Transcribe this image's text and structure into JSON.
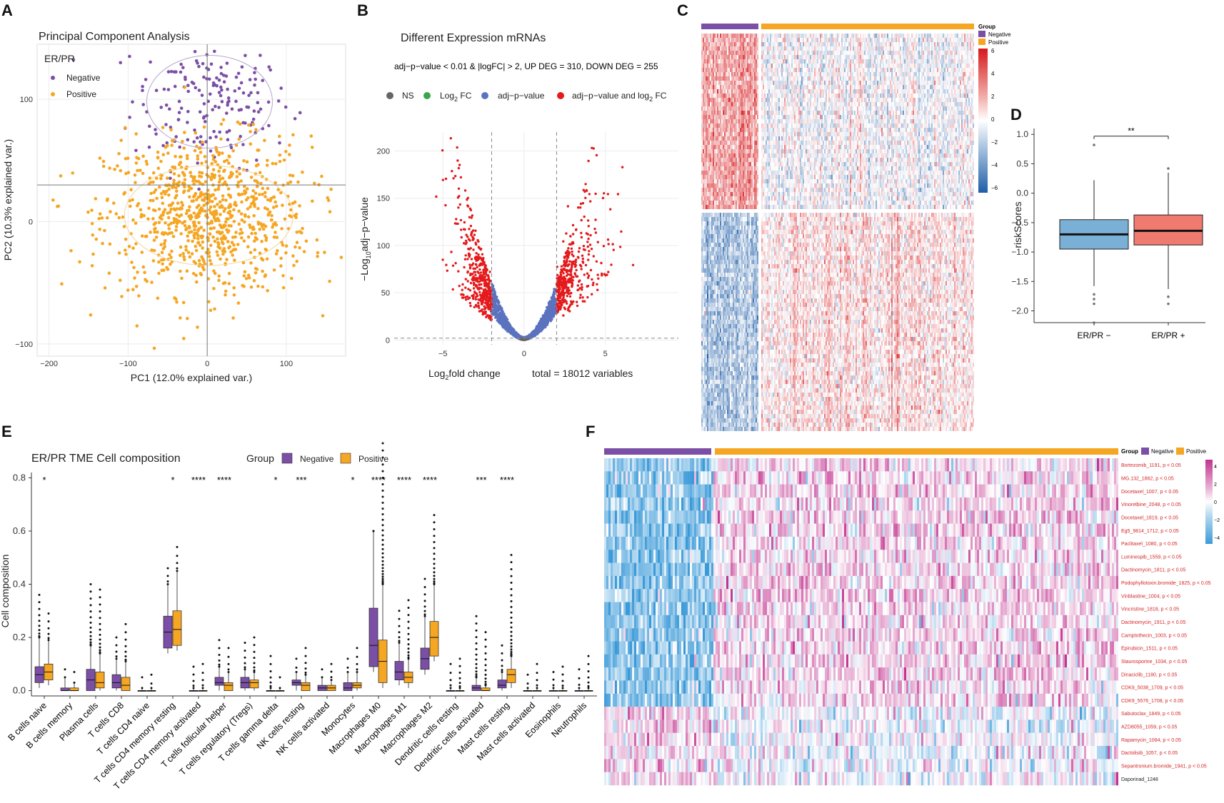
{
  "panels": {
    "A": "A",
    "B": "B",
    "C": "C",
    "D": "D",
    "E": "E",
    "F": "F"
  },
  "colors": {
    "negative": "#7b4fa6",
    "positive": "#f5a623",
    "up": "#e41a1c",
    "sig": "#5b73bf",
    "ns": "#666666",
    "fc": "#3aa64a",
    "boxNeg": "#7bb0d6",
    "boxPos": "#f07a70"
  },
  "chart_data": [
    {
      "panel": "A",
      "type": "scatter",
      "title": "Principal Component Analysis",
      "xlabel": "PC1 (12.0% explained var.)",
      "ylabel": "PC2 (10.3% explained var.)",
      "xlim": [
        -215,
        175
      ],
      "ylim": [
        -110,
        145
      ],
      "xticks": [
        -200,
        -100,
        0,
        100
      ],
      "yticks": [
        -100,
        0,
        100
      ],
      "xtick_labels": [
        "−200",
        "−100",
        "0",
        "100"
      ],
      "ytick_labels": [
        "−100",
        "0",
        "100"
      ],
      "legend_title": "ER/PR",
      "series": [
        {
          "name": "Negative",
          "center": [
            5,
            100
          ],
          "spread": [
            50,
            28
          ],
          "n": 190
        },
        {
          "name": "Positive",
          "center": [
            0,
            5
          ],
          "spread": [
            65,
            32
          ],
          "n": 900
        }
      ]
    },
    {
      "panel": "B",
      "type": "scatter",
      "title": "Different Expression mRNAs",
      "subtitle": "adj−p−value < 0.01 & |logFC| > 2, UP DEG = 310, DOWN DEG = 255",
      "xlabel": "fold change",
      "xlabel_prefix": "Log",
      "xlabel_sub": "2",
      "ylabel": "adj−p−value",
      "ylabel_prefix": "−Log",
      "ylabel_sub": "10",
      "caption": "total = 18012 variables",
      "legend": [
        "NS",
        "Log",
        "2",
        " FC",
        "adj−p−value",
        "adj−p−value and log",
        "2",
        " FC"
      ],
      "xlim": [
        -8,
        9.5
      ],
      "ylim": [
        -5,
        220
      ],
      "xticks": [
        -5,
        0,
        5
      ],
      "xtick_labels": [
        "−5",
        "0",
        "5"
      ],
      "yticks": [
        0,
        50,
        100,
        150,
        200
      ],
      "ytick_labels": [
        "0",
        "50",
        "100",
        "150",
        "200"
      ],
      "fc_cutoff": 2,
      "p_cutoff": 2
    },
    {
      "panel": "C",
      "type": "heatmap",
      "legend_title": "Group",
      "legend_items": [
        "Negative",
        "Positive"
      ],
      "scale_ticks": [
        "6",
        "4",
        "2",
        "0",
        "−2",
        "−4",
        "−6"
      ]
    },
    {
      "panel": "D",
      "type": "box",
      "ylabel": "riskScores",
      "categories": [
        "ER/PR −",
        "ER/PR +"
      ],
      "yticks": [
        1.0,
        0.5,
        0.0,
        -0.5,
        -1.0,
        -1.5,
        -2.0
      ],
      "ytick_labels": [
        "1.0",
        "0.5",
        "0.0",
        "−0.5",
        "−1.0",
        "−1.5",
        "−2.0"
      ],
      "ylim": [
        -2.2,
        1.1
      ],
      "significance": "**",
      "boxes": [
        {
          "q1": -0.95,
          "median": -0.7,
          "q3": -0.45,
          "wlo": -1.58,
          "whi": 0.22,
          "out": [
            0.82,
            -1.72,
            -1.8,
            -1.88,
            -2.2
          ]
        },
        {
          "q1": -0.88,
          "median": -0.64,
          "q3": -0.37,
          "wlo": -1.63,
          "whi": 0.35,
          "out": [
            0.42,
            -1.76,
            -1.88
          ]
        }
      ]
    },
    {
      "panel": "E",
      "type": "box",
      "title": "ER/PR TME Cell composition",
      "ylabel": "Cell composition",
      "legend_title": "Group",
      "legend_items": [
        "Negative",
        "Positive"
      ],
      "yticks": [
        0.0,
        0.2,
        0.4,
        0.6,
        0.8
      ],
      "ytick_labels": [
        "0.0",
        "0.2",
        "0.4",
        "0.6",
        "0.8"
      ],
      "ylim": [
        -0.02,
        0.82
      ],
      "categories": [
        "B cells naive",
        "B cells memory",
        "Plasma cells",
        "T cells CD8",
        "T cells CD4 naive",
        "T cells CD4 memory resting",
        "T cells CD4 memory activated",
        "T cells follicular helper",
        "T cells regulatory (Tregs)",
        "T cells gamma delta",
        "NK cells resting",
        "NK cells activated",
        "Monocytes",
        "Macrophages M0",
        "Macrophages M1",
        "Macrophages M2",
        "Dendritic cells resting",
        "Dendritic cells activated",
        "Mast cells resting",
        "Mast cells activated",
        "Eosinophils",
        "Neutrophils"
      ],
      "significance": [
        "*",
        "",
        "",
        "",
        "",
        "*",
        "****",
        "****",
        "",
        "*",
        "***",
        "",
        "*",
        "****",
        "****",
        "****",
        "",
        "***",
        "****",
        "",
        "",
        ""
      ],
      "neg": [
        [
          0.03,
          0.06,
          0.09,
          0.2
        ],
        [
          0.0,
          0.0,
          0.01,
          0.05
        ],
        [
          0.0,
          0.04,
          0.08,
          0.17
        ],
        [
          0.01,
          0.03,
          0.06,
          0.12
        ],
        [
          0.0,
          0.0,
          0.0,
          0.01
        ],
        [
          0.16,
          0.22,
          0.28,
          0.4
        ],
        [
          0.0,
          0.0,
          0.0,
          0.01
        ],
        [
          0.02,
          0.03,
          0.05,
          0.09
        ],
        [
          0.01,
          0.03,
          0.05,
          0.08
        ],
        [
          0.0,
          0.0,
          0.0,
          0.01
        ],
        [
          0.02,
          0.03,
          0.04,
          0.07
        ],
        [
          0.0,
          0.01,
          0.02,
          0.05
        ],
        [
          0.0,
          0.01,
          0.03,
          0.07
        ],
        [
          0.09,
          0.17,
          0.31,
          0.6
        ],
        [
          0.04,
          0.07,
          0.11,
          0.18
        ],
        [
          0.08,
          0.12,
          0.16,
          0.28
        ],
        [
          0.0,
          0.0,
          0.0,
          0.01
        ],
        [
          0.0,
          0.01,
          0.02,
          0.05
        ],
        [
          0.01,
          0.02,
          0.04,
          0.07
        ],
        [
          0.0,
          0.0,
          0.0,
          0.01
        ],
        [
          0.0,
          0.0,
          0.0,
          0.01
        ],
        [
          0.0,
          0.0,
          0.0,
          0.01
        ]
      ],
      "pos": [
        [
          0.04,
          0.07,
          0.1,
          0.19
        ],
        [
          0.0,
          0.0,
          0.01,
          0.03
        ],
        [
          0.01,
          0.03,
          0.07,
          0.14
        ],
        [
          0.0,
          0.02,
          0.05,
          0.11
        ],
        [
          0.0,
          0.0,
          0.0,
          0.01
        ],
        [
          0.17,
          0.23,
          0.3,
          0.45
        ],
        [
          0.0,
          0.0,
          0.0,
          0.01
        ],
        [
          0.0,
          0.02,
          0.03,
          0.07
        ],
        [
          0.01,
          0.03,
          0.04,
          0.07
        ],
        [
          0.0,
          0.0,
          0.0,
          0.01
        ],
        [
          0.0,
          0.02,
          0.03,
          0.06
        ],
        [
          0.0,
          0.01,
          0.02,
          0.04
        ],
        [
          0.01,
          0.02,
          0.03,
          0.07
        ],
        [
          0.03,
          0.11,
          0.19,
          0.4
        ],
        [
          0.03,
          0.05,
          0.07,
          0.12
        ],
        [
          0.13,
          0.2,
          0.26,
          0.4
        ],
        [
          0.0,
          0.0,
          0.0,
          0.01
        ],
        [
          0.0,
          0.0,
          0.01,
          0.02
        ],
        [
          0.03,
          0.06,
          0.08,
          0.13
        ],
        [
          0.0,
          0.0,
          0.0,
          0.01
        ],
        [
          0.0,
          0.0,
          0.0,
          0.01
        ],
        [
          0.0,
          0.0,
          0.0,
          0.01
        ]
      ],
      "neg_out_max": [
        0.36,
        0.08,
        0.4,
        0.2,
        0.05,
        0.46,
        0.09,
        0.19,
        0.18,
        0.13,
        0.12,
        0.08,
        0.12,
        0.6,
        0.3,
        0.42,
        0.1,
        0.28,
        0.17,
        0.06,
        0.07,
        0.08
      ],
      "pos_out_max": [
        0.29,
        0.07,
        0.38,
        0.25,
        0.06,
        0.54,
        0.1,
        0.16,
        0.2,
        0.05,
        0.16,
        0.1,
        0.16,
        0.93,
        0.34,
        0.66,
        0.12,
        0.22,
        0.51,
        0.1,
        0.09,
        0.13
      ]
    },
    {
      "panel": "F",
      "type": "heatmap",
      "legend_title": "Group",
      "legend_items": [
        "Negative",
        "Positive"
      ],
      "scale_ticks": [
        "4",
        "2",
        "0",
        "−2",
        "−4"
      ],
      "rows": [
        "Bortezomib_1191, p < 0.05",
        "MG.132_1862, p < 0.05",
        "Docetaxel_1007, p < 0.05",
        "Vinorelbine_2048, p < 0.05",
        "Docetaxel_1819, p < 0.05",
        "Eg5_9814_1712, p < 0.05",
        "Paclitaxel_1080, p < 0.05",
        "Luminespib_1559, p < 0.05",
        "Dactinomycin_1811, p < 0.05",
        "Podophyllotoxin.bromide_1825, p < 0.05",
        "Vinblastine_1004, p < 0.05",
        "Vincristine_1818, p < 0.05",
        "Dactinomycin_1911, p < 0.05",
        "Camptothecin_1003, p < 0.05",
        "Epirubicin_1511, p < 0.05",
        "Staurosporine_1034, p < 0.05",
        "Dinaciclib_1180, p < 0.05",
        "CDK9_5038_1709, p < 0.05",
        "CDK9_5576_1708, p < 0.05",
        "Sabutoclax_1849, p < 0.05",
        "AZD8055_1059, p < 0.05",
        "Rapamycin_1084, p < 0.05",
        "Dactolisib_1057, p < 0.05",
        "Sepantronium.bromide_1941, p < 0.05",
        "Daporinad_1248"
      ]
    }
  ]
}
